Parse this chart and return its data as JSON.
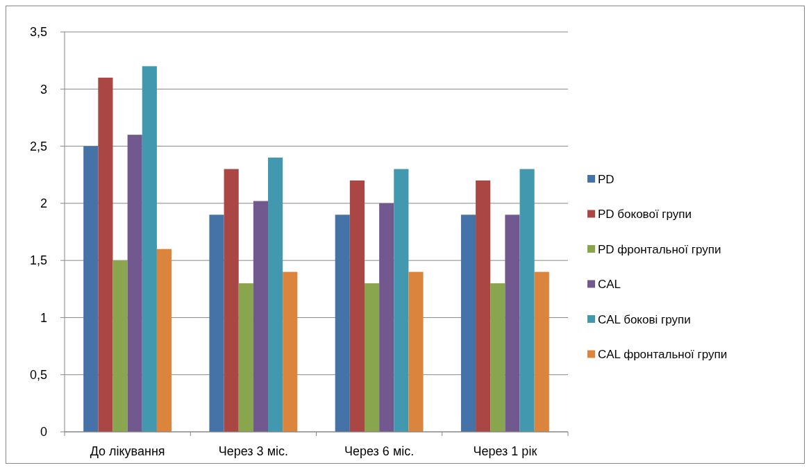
{
  "chart_data": {
    "type": "bar",
    "categories": [
      "До лікування",
      "Через 3 міс.",
      "Через 6 міс.",
      "Через 1 рік"
    ],
    "series": [
      {
        "name": "PD",
        "color": "#4572a7",
        "values": [
          2.5,
          1.9,
          1.9,
          1.9
        ]
      },
      {
        "name": "PD бокової групи",
        "color": "#aa4643",
        "values": [
          3.1,
          2.3,
          2.2,
          2.2
        ]
      },
      {
        "name": "PD фронтальної групи",
        "color": "#89a54e",
        "values": [
          1.5,
          1.3,
          1.3,
          1.3
        ]
      },
      {
        "name": "CAL",
        "color": "#71588f",
        "values": [
          2.6,
          2.02,
          2.0,
          1.9
        ]
      },
      {
        "name": "CAL бокові групи",
        "color": "#4198af",
        "values": [
          3.2,
          2.4,
          2.3,
          2.3
        ]
      },
      {
        "name": "CAL фронтальної групи",
        "color": "#db843d",
        "values": [
          1.6,
          1.4,
          1.4,
          1.4
        ]
      }
    ],
    "ylim": [
      0,
      3.5
    ],
    "yticks": [
      0,
      {
        "value": 0.5,
        "label": "0,5"
      },
      1,
      {
        "value": 1.5,
        "label": "1,5"
      },
      2,
      {
        "value": 2.5,
        "label": "2,5"
      },
      3,
      {
        "value": 3.5,
        "label": "3,5"
      }
    ],
    "grid": "y",
    "legend": "right"
  }
}
